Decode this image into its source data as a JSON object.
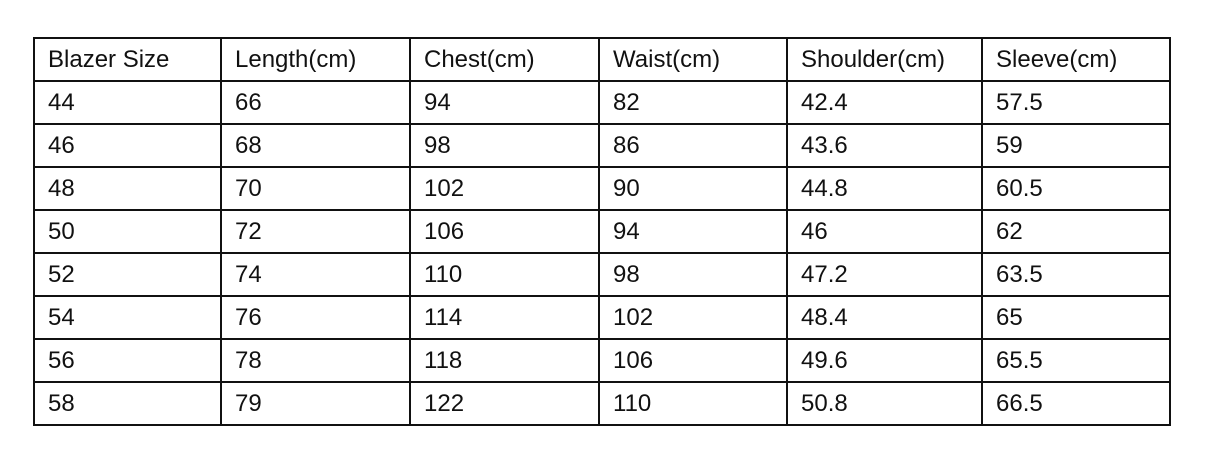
{
  "table": {
    "headers": [
      "Blazer Size",
      "Length(cm)",
      "Chest(cm)",
      "Waist(cm)",
      "Shoulder(cm)",
      "Sleeve(cm)"
    ],
    "rows": [
      [
        "44",
        "66",
        "94",
        "82",
        "42.4",
        "57.5"
      ],
      [
        "46",
        "68",
        "98",
        "86",
        "43.6",
        "59"
      ],
      [
        "48",
        "70",
        "102",
        "90",
        "44.8",
        "60.5"
      ],
      [
        "50",
        "72",
        "106",
        "94",
        "46",
        "62"
      ],
      [
        "52",
        "74",
        "110",
        "98",
        "47.2",
        "63.5"
      ],
      [
        "54",
        "76",
        "114",
        "102",
        "48.4",
        "65"
      ],
      [
        "56",
        "78",
        "118",
        "106",
        "49.6",
        "65.5"
      ],
      [
        "58",
        "79",
        "122",
        "110",
        "50.8",
        "66.5"
      ]
    ]
  }
}
